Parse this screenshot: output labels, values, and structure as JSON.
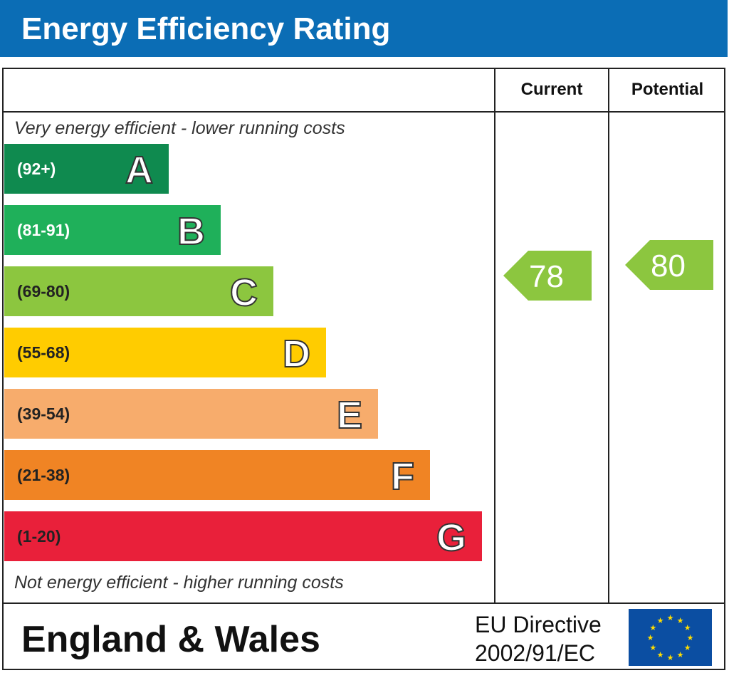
{
  "header": {
    "title": "Energy Efficiency Rating"
  },
  "columns": {
    "current": "Current",
    "potential": "Potential"
  },
  "notes": {
    "top": "Very energy efficient - lower running costs",
    "bottom": "Not energy efficient - higher running costs"
  },
  "footer": {
    "region": "England & Wales",
    "directive_line1": "EU Directive",
    "directive_line2": "2002/91/EC"
  },
  "colors": {
    "header": "#0b6db5",
    "flag": "#0b4ea2",
    "stars": "#ffdd00"
  },
  "chart_data": {
    "type": "bar",
    "bands": [
      {
        "letter": "A",
        "range": "(92+)",
        "color": "#0f8a4f"
      },
      {
        "letter": "B",
        "range": "(81-91)",
        "color": "#1fb05a"
      },
      {
        "letter": "C",
        "range": "(69-80)",
        "color": "#8cc63f"
      },
      {
        "letter": "D",
        "range": "(55-68)",
        "color": "#ffcc00"
      },
      {
        "letter": "E",
        "range": "(39-54)",
        "color": "#f7ac6c"
      },
      {
        "letter": "F",
        "range": "(21-38)",
        "color": "#f08424"
      },
      {
        "letter": "G",
        "range": "(1-20)",
        "color": "#e9203a"
      }
    ],
    "current": {
      "value": "78",
      "band": "C",
      "color": "#8cc63f"
    },
    "potential": {
      "value": "80",
      "band": "C",
      "color": "#8cc63f"
    }
  }
}
